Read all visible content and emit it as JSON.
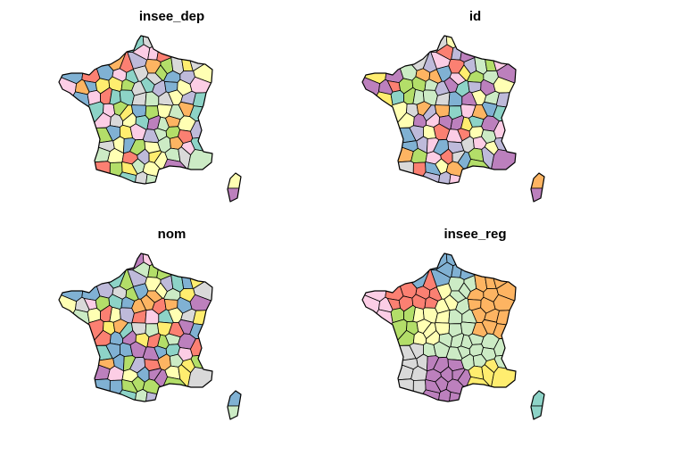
{
  "palette": [
    "#8DD3C7",
    "#FFFFB3",
    "#BEBADA",
    "#FB8072",
    "#80B1D3",
    "#FDB462",
    "#B3DE69",
    "#FCCDE5",
    "#D9D9D9",
    "#BC80BD",
    "#CCEBC5",
    "#FFED6F"
  ],
  "panels": [
    {
      "title": "insee_dep",
      "coloring": "department",
      "seed": 3
    },
    {
      "title": "id",
      "coloring": "department",
      "seed": 11
    },
    {
      "title": "nom",
      "coloring": "department",
      "seed": 23
    },
    {
      "title": "insee_reg",
      "coloring": "region",
      "seed": 0
    }
  ]
}
